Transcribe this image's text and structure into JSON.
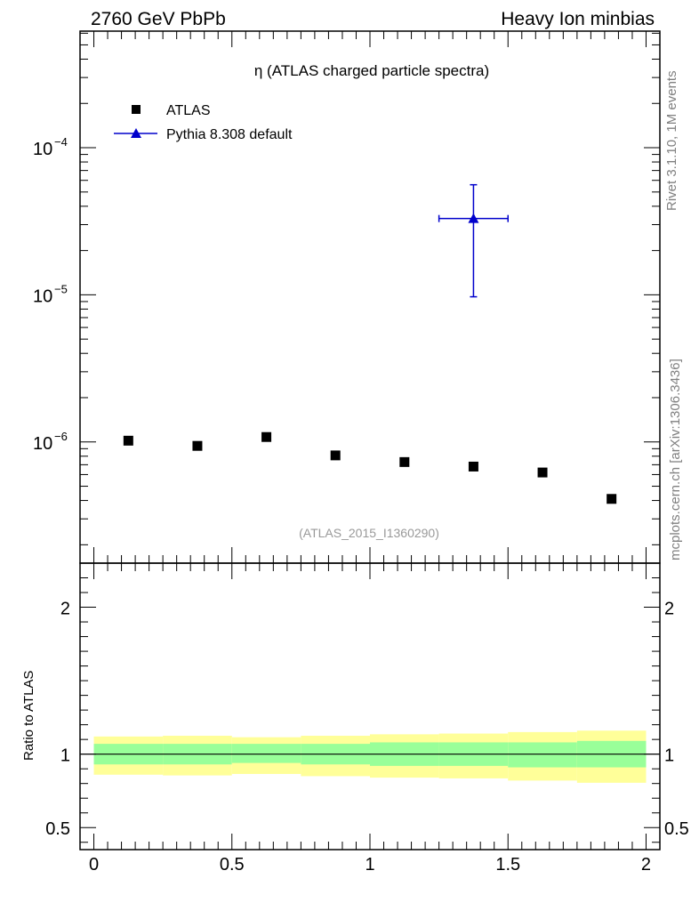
{
  "header": {
    "left": "2760 GeV PbPb",
    "right": "Heavy Ion minbias"
  },
  "side_labels": {
    "top": "Rivet 3.1.10,  1M events",
    "bottom": "mcplots.cern.ch [arXiv:1306.3436]"
  },
  "chart_data": [
    {
      "panel": "main",
      "type": "scatter",
      "title": "η (ATLAS charged particle spectra)",
      "analysis_tag": "(ATLAS_2015_I1360290)",
      "y_scale": "log",
      "xlim": [
        -0.05,
        2.05
      ],
      "ylim": [
        1.5e-07,
        0.00062
      ],
      "y_tick_labels": [
        {
          "value": 0.0001,
          "mantissa": "10",
          "exponent": "−4"
        },
        {
          "value": 1e-05,
          "mantissa": "10",
          "exponent": "−5"
        },
        {
          "value": 1e-06,
          "mantissa": "10",
          "exponent": "−6"
        }
      ],
      "legend": [
        {
          "label": "ATLAS",
          "marker": "square",
          "color": "#000000"
        },
        {
          "label": "Pythia 8.308 default",
          "marker": "triangle",
          "color": "#0000cc"
        }
      ],
      "series": [
        {
          "name": "ATLAS",
          "x": [
            0.125,
            0.375,
            0.625,
            0.875,
            1.125,
            1.375,
            1.625,
            1.875
          ],
          "y": [
            1.02e-06,
            9.4e-07,
            1.08e-06,
            8.1e-07,
            7.3e-07,
            6.8e-07,
            6.2e-07,
            4.1e-07
          ]
        },
        {
          "name": "Pythia 8.308 default",
          "x": [
            1.375
          ],
          "x_err": [
            [
              1.25,
              1.5
            ]
          ],
          "y": [
            3.3e-05
          ],
          "y_err": [
            [
              9.7e-06,
              5.6e-05
            ]
          ]
        }
      ]
    },
    {
      "panel": "ratio",
      "type": "area",
      "ylabel": "Ratio to ATLAS",
      "xlim": [
        -0.05,
        2.05
      ],
      "ylim": [
        0.35,
        2.3
      ],
      "x_ticks": [
        0,
        0.5,
        1,
        1.5,
        2
      ],
      "x_tick_labels": [
        "0",
        "0.5",
        "1",
        "1.5",
        "2"
      ],
      "y_ticks": [
        0.5,
        1,
        2
      ],
      "y_tick_labels": [
        "0.5",
        "1",
        "2"
      ],
      "bins": [
        0,
        0.25,
        0.5,
        0.75,
        1.0,
        1.25,
        1.5,
        1.75,
        2.0
      ],
      "stat_band": {
        "color": "#99ff99",
        "lo": [
          0.93,
          0.93,
          0.94,
          0.93,
          0.92,
          0.92,
          0.91,
          0.91
        ],
        "hi": [
          1.07,
          1.07,
          1.07,
          1.07,
          1.08,
          1.08,
          1.08,
          1.09
        ]
      },
      "total_band": {
        "color": "#ffff99",
        "lo": [
          0.86,
          0.855,
          0.865,
          0.85,
          0.84,
          0.835,
          0.82,
          0.805
        ],
        "hi": [
          1.12,
          1.125,
          1.115,
          1.125,
          1.135,
          1.14,
          1.15,
          1.16
        ]
      },
      "reference_line": 1
    }
  ]
}
